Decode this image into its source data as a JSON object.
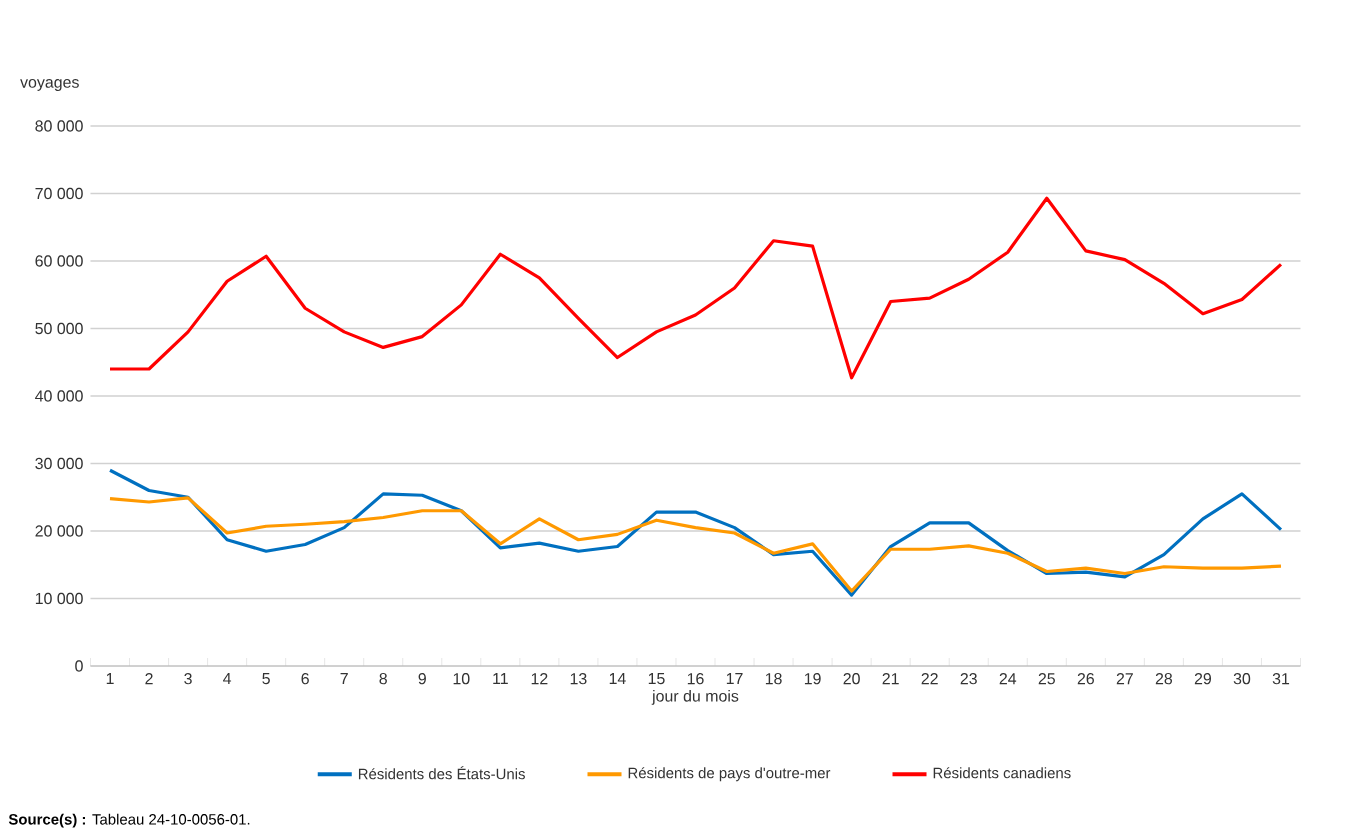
{
  "chart_data": {
    "type": "line",
    "categories": [
      "1",
      "2",
      "3",
      "4",
      "5",
      "6",
      "7",
      "8",
      "9",
      "10",
      "11",
      "12",
      "13",
      "14",
      "15",
      "16",
      "17",
      "18",
      "19",
      "20",
      "21",
      "22",
      "23",
      "24",
      "25",
      "26",
      "27",
      "28",
      "29",
      "30",
      "31"
    ],
    "series": [
      {
        "name": "Résidents des États-Unis",
        "color": "#0070c0",
        "values": [
          29000,
          26000,
          25000,
          18700,
          17000,
          18000,
          20500,
          25500,
          25300,
          23000,
          17500,
          18200,
          17000,
          17700,
          22800,
          22800,
          20500,
          16500,
          17000,
          10500,
          17700,
          21200,
          21200,
          17100,
          13700,
          13900,
          13200,
          16500,
          21800,
          25500,
          20200
        ]
      },
      {
        "name": "Résidents de pays d'outre-mer",
        "color": "#ff9900",
        "values": [
          24800,
          24300,
          24900,
          19700,
          20700,
          21000,
          21400,
          22000,
          23000,
          23000,
          18100,
          21800,
          18700,
          19500,
          21600,
          20500,
          19700,
          16700,
          18100,
          11100,
          17300,
          17300,
          17800,
          16700,
          14000,
          14500,
          13700,
          14700,
          14500,
          14500,
          14800
        ]
      },
      {
        "name": "Résidents canadiens",
        "color": "#ff0000",
        "values": [
          44000,
          44000,
          49500,
          57000,
          60700,
          53000,
          49500,
          47200,
          48800,
          53500,
          61000,
          57500,
          51500,
          45700,
          49500,
          52000,
          56000,
          63000,
          62200,
          42700,
          54000,
          54500,
          57300,
          61300,
          69300,
          61500,
          60200,
          56700,
          52200,
          54300,
          59500
        ]
      }
    ],
    "ylim": [
      0,
      80000
    ],
    "yticks": [
      0,
      {
        "value": 10000,
        "label": "10 000"
      },
      {
        "value": 20000,
        "label": "20 000"
      },
      {
        "value": 30000,
        "label": "30 000"
      },
      {
        "value": 40000,
        "label": "40 000"
      },
      {
        "value": 50000,
        "label": "50 000"
      },
      {
        "value": 60000,
        "label": "60 000"
      },
      {
        "value": 70000,
        "label": "70 000"
      },
      {
        "value": 80000,
        "label": "80 000"
      }
    ],
    "xlabel": "jour du mois",
    "ylabel": "voyages",
    "grid": "y",
    "legend": "bottom",
    "annotations": [
      "**Source(s) :** Tableau 24-10-0056-01."
    ]
  }
}
